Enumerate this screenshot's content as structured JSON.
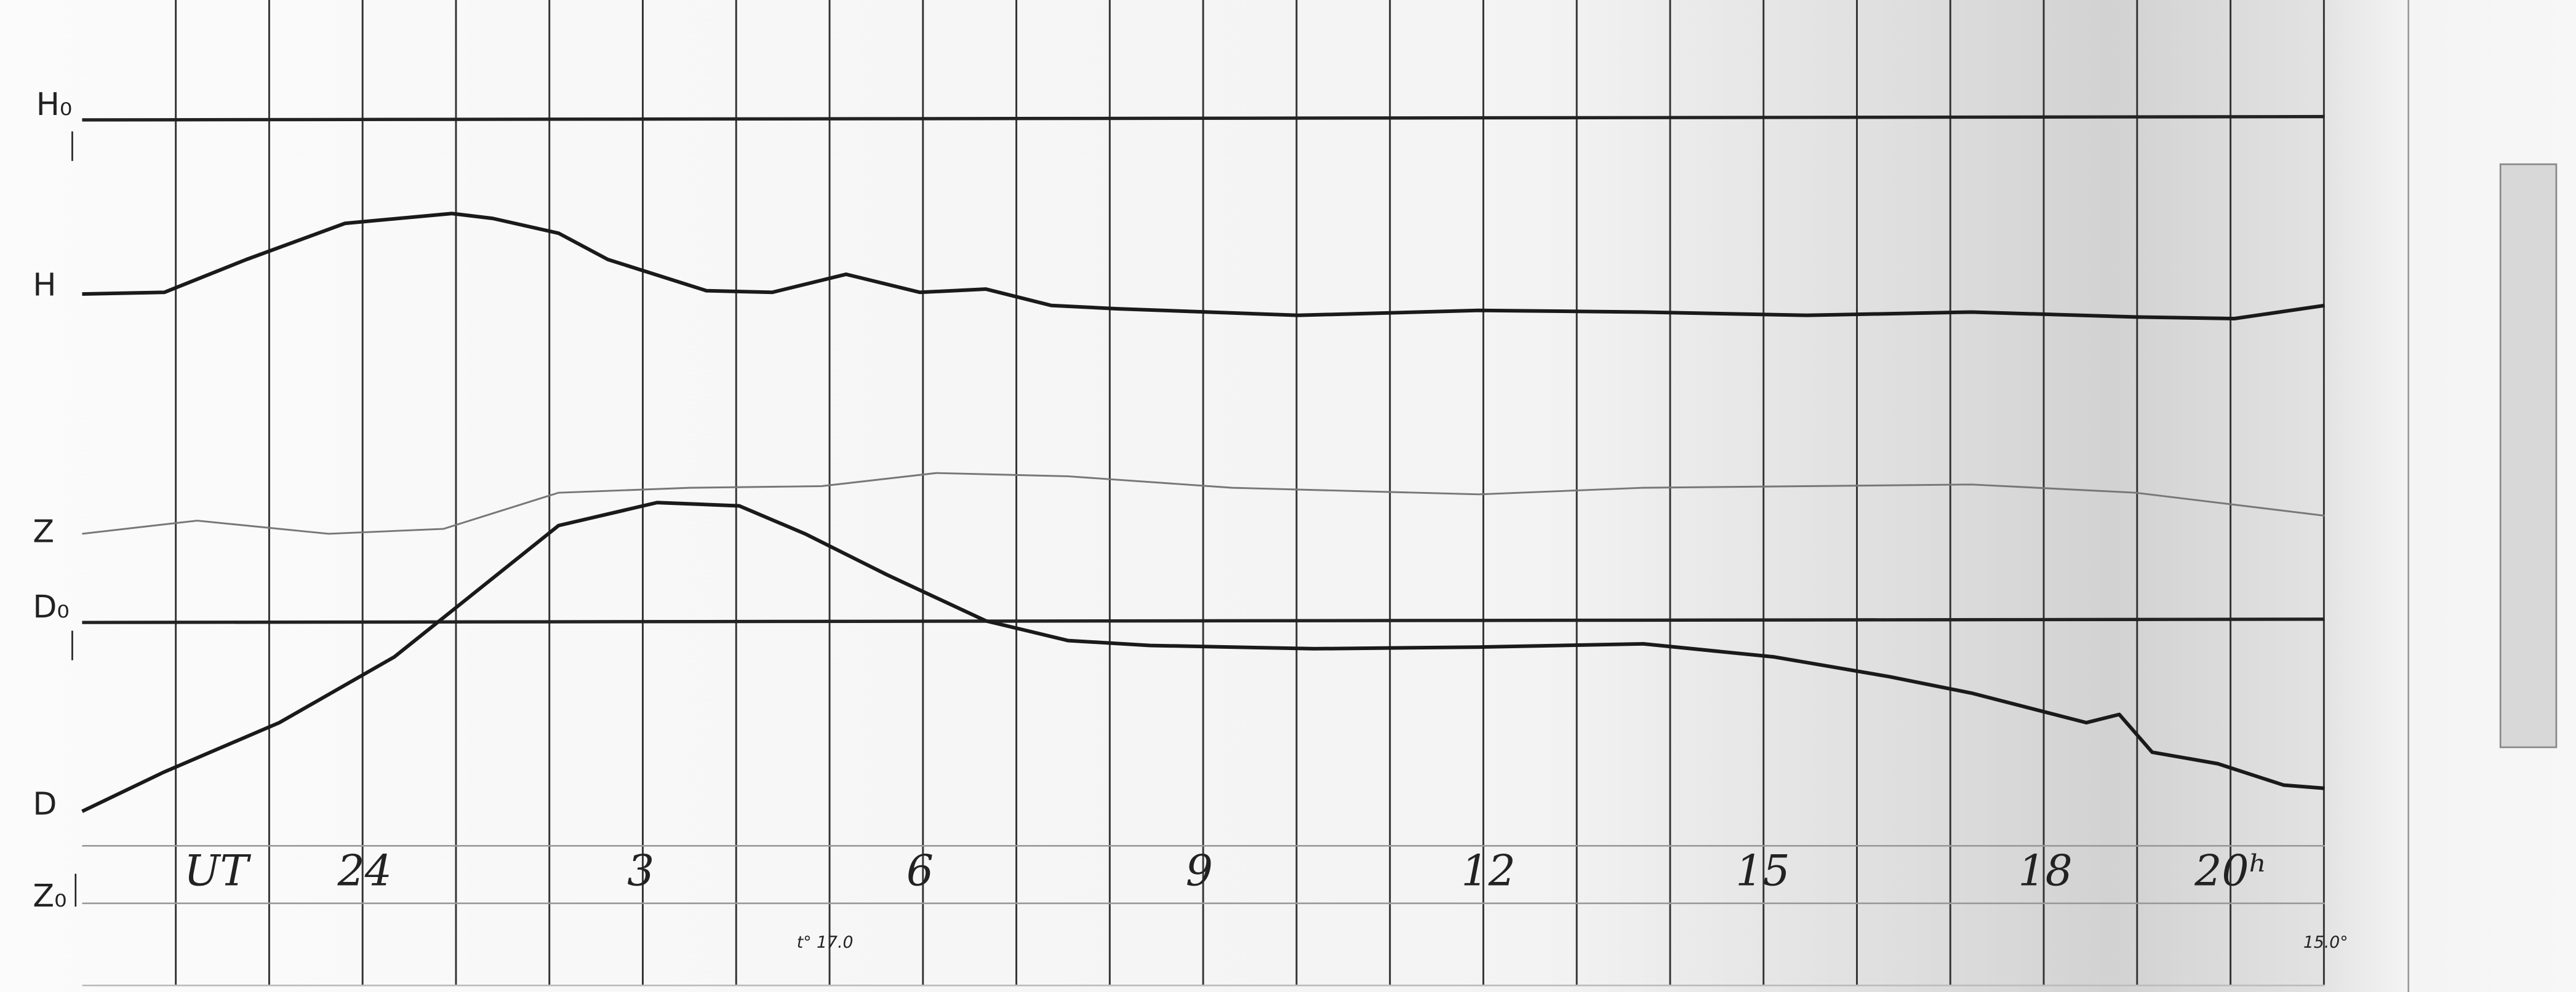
{
  "trace_labels": {
    "h_zero": "H₀",
    "h": "H",
    "z": "Z",
    "d_zero": "D₀",
    "d": "D",
    "z_zero": "Z₀"
  },
  "time_axis": {
    "label": "UT",
    "hours": [
      "24",
      "3",
      "6",
      "9",
      "12",
      "15",
      "18",
      "20ʰ"
    ]
  },
  "temperature_marks": [
    "t° 17.0",
    "15.0°"
  ]
}
